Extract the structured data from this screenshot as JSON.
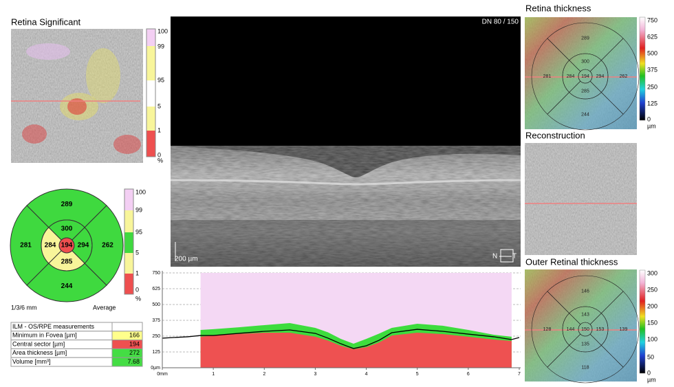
{
  "left": {
    "title": "Retina Significant",
    "scale_labels": [
      "100",
      "99",
      "95",
      "5",
      "1",
      "0",
      "%"
    ]
  },
  "etdrs": {
    "sectors": [
      {
        "value": 289,
        "color": "#3fd93f"
      },
      {
        "value": 300,
        "color": "#3fd93f"
      },
      {
        "value": 281,
        "color": "#3fd93f"
      },
      {
        "value": 284,
        "color": "#f8f59a"
      },
      {
        "value": 194,
        "color": "#ee4f4f"
      },
      {
        "value": 294,
        "color": "#3fd93f"
      },
      {
        "value": 262,
        "color": "#3fd93f"
      },
      {
        "value": 285,
        "color": "#f8f59a"
      },
      {
        "value": 244,
        "color": "#3fd93f"
      }
    ],
    "scale_labels": [
      "100",
      "99",
      "95",
      "5",
      "1",
      "0",
      "%"
    ],
    "caption_left": "1/3/6 mm",
    "caption_right": "Average"
  },
  "table": {
    "header": "ILM - OS/RPE measurements",
    "rows": [
      {
        "label": "Minimum in Fovea [µm]",
        "value": 166,
        "color": "#ffff8c"
      },
      {
        "label": "Central sector [µm]",
        "value": 194,
        "color": "#ee5050"
      },
      {
        "label": "Area thickness [µm]",
        "value": 272,
        "color": "#44dd44"
      },
      {
        "label": "Volume [mm³]",
        "value": 7.68,
        "color": "#44dd44"
      }
    ]
  },
  "oct_image": {
    "label": "DN  80 / 150",
    "scale": "200 µm",
    "nasal": "N",
    "temporal": "T"
  },
  "chart_data": {
    "type": "line",
    "x": [
      0,
      0.5,
      0.75,
      1,
      1.5,
      2,
      2.5,
      3,
      3.25,
      3.5,
      3.75,
      4,
      4.25,
      4.5,
      5,
      5.5,
      6,
      6.5,
      6.85,
      7
    ],
    "series": [
      {
        "color": "#f4d8f4",
        "fill": true,
        "values": [
          null,
          null,
          750,
          750,
          750,
          750,
          750,
          750,
          750,
          750,
          750,
          750,
          750,
          750,
          750,
          750,
          750,
          750,
          750,
          null
        ]
      },
      {
        "color": "#3ddc3d",
        "fill": true,
        "values": [
          null,
          null,
          299,
          305,
          320,
          337,
          353,
          315,
          280,
          228,
          190,
          228,
          270,
          315,
          348,
          332,
          299,
          261,
          245,
          null
        ]
      },
      {
        "color": "#ee5151",
        "fill": true,
        "values": [
          null,
          null,
          245,
          255,
          268,
          277,
          277,
          245,
          215,
          174,
          147,
          163,
          200,
          255,
          277,
          266,
          245,
          223,
          212,
          null
        ]
      },
      {
        "color": "#000000",
        "fill": false,
        "values": [
          234,
          245,
          255,
          255,
          272,
          288,
          299,
          272,
          234,
          190,
          152,
          174,
          217,
          277,
          304,
          288,
          266,
          245,
          223,
          239
        ]
      }
    ],
    "xlim": [
      0,
      7
    ],
    "xticks": [
      {
        "value": 0,
        "label": "0mm"
      },
      1,
      2,
      3,
      4,
      5,
      6,
      7
    ],
    "ylim": [
      0,
      750
    ],
    "yticks": [
      {
        "value": 0,
        "label": "0µm"
      },
      125,
      250,
      375,
      500,
      625,
      750
    ],
    "grid": true
  },
  "right": {
    "retina_title": "Retina thickness",
    "retina_values": [
      289,
      300,
      281,
      284,
      194,
      294,
      262,
      285,
      244
    ],
    "retina_scale": [
      "750",
      "625",
      "500",
      "375",
      "250",
      "125",
      "0",
      "µm"
    ],
    "reconstruction_title": "Reconstruction",
    "outer_title": "Outer Retinal thickness",
    "outer_values": [
      146,
      143,
      128,
      144,
      150,
      153,
      139,
      135,
      118
    ],
    "outer_scale": [
      "300",
      "250",
      "200",
      "150",
      "100",
      "50",
      "0",
      "µm"
    ]
  }
}
